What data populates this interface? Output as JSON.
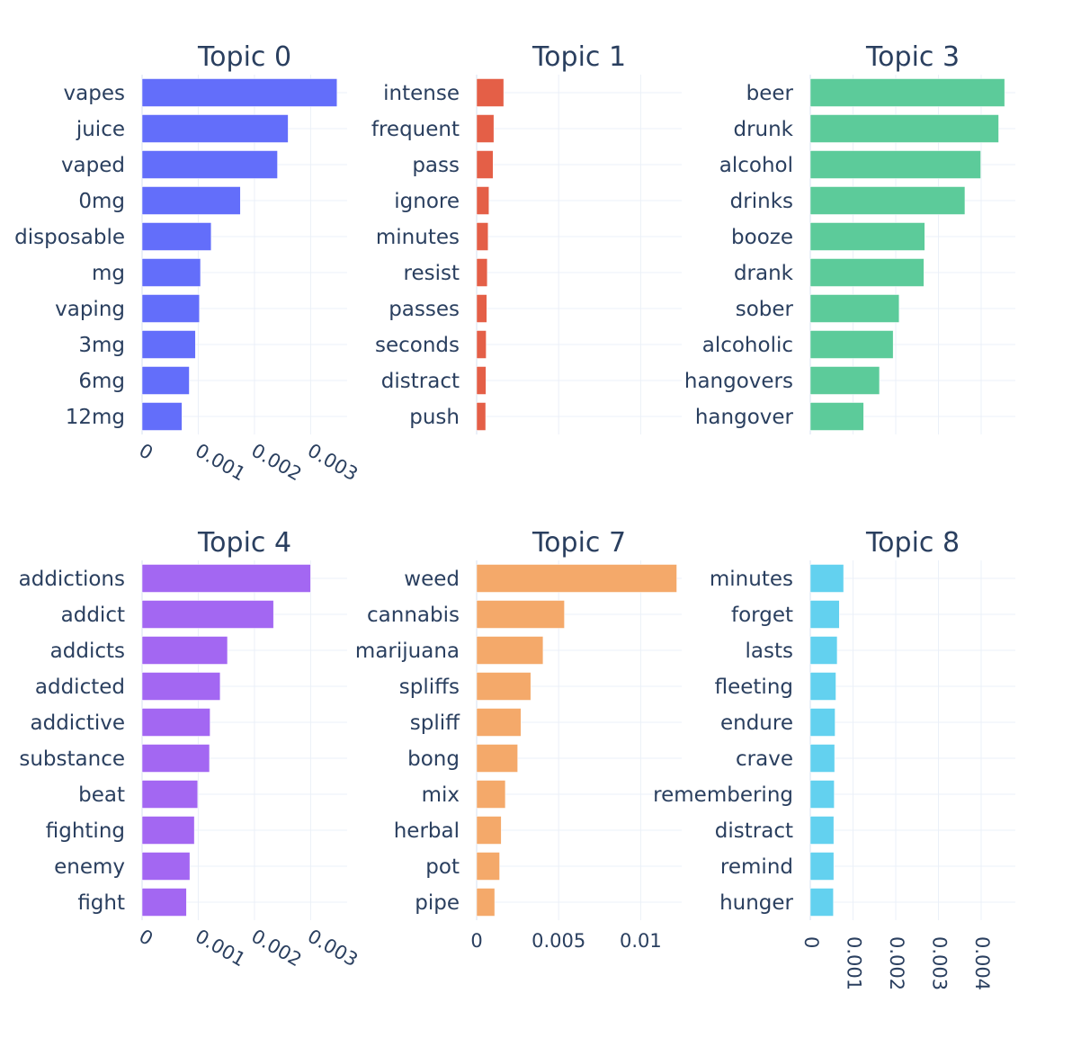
{
  "chart_data": [
    {
      "type": "bar",
      "orientation": "horizontal",
      "title": "Topic 0",
      "color": "#636efa",
      "categories": [
        "vapes",
        "juice",
        "vaped",
        "0mg",
        "disposable",
        "mg",
        "vaping",
        "3mg",
        "6mg",
        "12mg"
      ],
      "values": [
        0.00347,
        0.0026,
        0.00241,
        0.00175,
        0.00123,
        0.00104,
        0.00102,
        0.00095,
        0.00084,
        0.00071
      ],
      "xlim": [
        0,
        0.00365
      ],
      "xticks": [
        0,
        0.001,
        0.002,
        0.003
      ],
      "xtick_labels": [
        "0",
        "0.001",
        "0.002",
        "0.003"
      ],
      "xtick_labels_shown": true,
      "xtick_rotation": 30,
      "grid": true
    },
    {
      "type": "bar",
      "orientation": "horizontal",
      "title": "Topic 1",
      "color": "#e45f47",
      "categories": [
        "intense",
        "frequent",
        "pass",
        "ignore",
        "minutes",
        "resist",
        "passes",
        "seconds",
        "distract",
        "push"
      ],
      "values": [
        0.00165,
        0.00105,
        0.001,
        0.00075,
        0.0007,
        0.00065,
        0.00062,
        0.00058,
        0.00057,
        0.00055
      ],
      "xlim": [
        0,
        0.0125
      ],
      "xticks": [
        0,
        0.005,
        0.01
      ],
      "xtick_labels": [
        "0",
        "0.005",
        "0.01"
      ],
      "xtick_labels_shown": false,
      "xtick_rotation": 0,
      "grid": true
    },
    {
      "type": "bar",
      "orientation": "horizontal",
      "title": "Topic 3",
      "color": "#5ccb9a",
      "categories": [
        "beer",
        "drunk",
        "alcohol",
        "drinks",
        "booze",
        "drank",
        "sober",
        "alcoholic",
        "hangovers",
        "hangover"
      ],
      "values": [
        0.00455,
        0.00441,
        0.00399,
        0.00362,
        0.00268,
        0.00266,
        0.00208,
        0.00194,
        0.00162,
        0.00125
      ],
      "xlim": [
        0,
        0.0048
      ],
      "xticks": [
        0,
        0.001,
        0.002,
        0.003,
        0.004
      ],
      "xtick_labels": [
        "0",
        "0.001",
        "0.002",
        "0.003",
        "0.004"
      ],
      "xtick_labels_shown": false,
      "xtick_rotation": 90,
      "grid": true
    },
    {
      "type": "bar",
      "orientation": "horizontal",
      "title": "Topic 4",
      "color": "#a367f2",
      "categories": [
        "addictions",
        "addict",
        "addicts",
        "addicted",
        "addictive",
        "substance",
        "beat",
        "fighting",
        "enemy",
        "fight"
      ],
      "values": [
        0.003,
        0.00234,
        0.00152,
        0.00139,
        0.00121,
        0.0012,
        0.00099,
        0.00093,
        0.00085,
        0.00079
      ],
      "xlim": [
        0,
        0.00365
      ],
      "xticks": [
        0,
        0.001,
        0.002,
        0.003
      ],
      "xtick_labels": [
        "0",
        "0.001",
        "0.002",
        "0.003"
      ],
      "xtick_labels_shown": true,
      "xtick_rotation": 30,
      "grid": true
    },
    {
      "type": "bar",
      "orientation": "horizontal",
      "title": "Topic 7",
      "color": "#f4a96a",
      "categories": [
        "weed",
        "cannabis",
        "marijuana",
        "spliffs",
        "spliff",
        "bong",
        "mix",
        "herbal",
        "pot",
        "pipe"
      ],
      "values": [
        0.0122,
        0.00535,
        0.00405,
        0.0033,
        0.0027,
        0.0025,
        0.00175,
        0.0015,
        0.0014,
        0.0011
      ],
      "xlim": [
        0,
        0.0125
      ],
      "xticks": [
        0,
        0.005,
        0.01
      ],
      "xtick_labels": [
        "0",
        "0.005",
        "0.01"
      ],
      "xtick_labels_shown": true,
      "xtick_rotation": 0,
      "grid": true
    },
    {
      "type": "bar",
      "orientation": "horizontal",
      "title": "Topic 8",
      "color": "#63d1ef",
      "categories": [
        "minutes",
        "forget",
        "lasts",
        "fleeting",
        "endure",
        "crave",
        "remembering",
        "distract",
        "remind",
        "hunger"
      ],
      "values": [
        0.00078,
        0.00068,
        0.00063,
        0.0006,
        0.00058,
        0.00057,
        0.00056,
        0.00055,
        0.00055,
        0.00054
      ],
      "xlim": [
        0,
        0.0048
      ],
      "xticks": [
        0,
        0.001,
        0.002,
        0.003,
        0.004
      ],
      "xtick_labels": [
        "0",
        "0.001",
        "0.002",
        "0.003",
        "0.004"
      ],
      "xtick_labels_shown": true,
      "xtick_rotation": 90,
      "grid": true
    }
  ]
}
